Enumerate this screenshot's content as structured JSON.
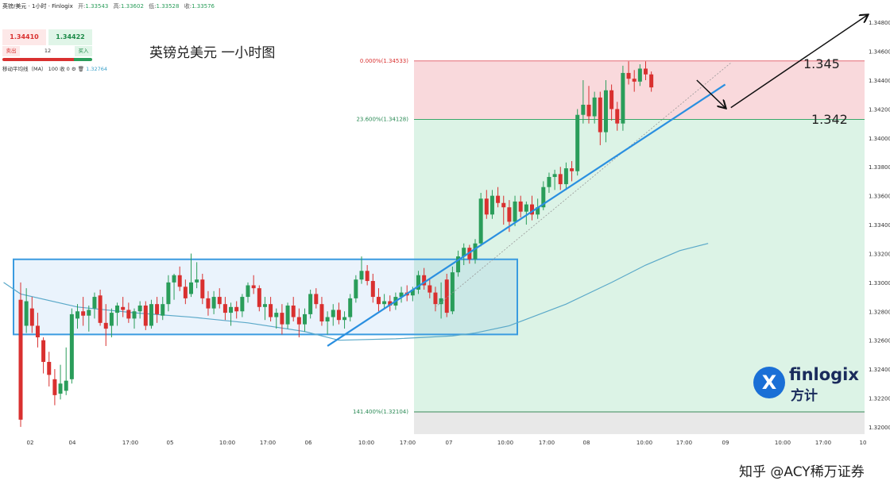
{
  "header": {
    "symbol": "英镑/美元 · 1小时 · Finlogix",
    "open_label": "开:",
    "open": "1.33543",
    "high_label": "高:",
    "high": "1.33602",
    "low_label": "低:",
    "low": "1.33528",
    "close_label": "收:",
    "close": "1.33576"
  },
  "trade": {
    "sell_price": "1.34410",
    "buy_price": "1.34422",
    "sell_label": "卖出",
    "buy_label": "买入",
    "quantity": "12",
    "sell_share": 0.8
  },
  "indicator": {
    "label": "移动平均线（MA） 100 收 0",
    "value": "1.32764"
  },
  "annotations": {
    "title": "英镑兑美元 一小时图",
    "level_high": "1.345",
    "level_mid": "1.342"
  },
  "brand": {
    "logo_en": "finlogix",
    "logo_cn": "方计",
    "logo_icon": "finlogix-x-logo"
  },
  "watermark": "知乎 @ACY稀万证券",
  "colors": {
    "up": "#2a9d5a",
    "down": "#d9302f",
    "fib_red": "#f9d9dc",
    "fib_green": "#dcf3e6",
    "range_box": "#3a9be0",
    "trendline": "#2a8fe0",
    "ma": "#5ba9c9"
  },
  "chart_data": {
    "type": "candlestick",
    "symbol": "GBP/USD",
    "timeframe": "1H",
    "y_ticks": [
      "1.34800",
      "1.34600",
      "1.34400",
      "1.34200",
      "1.34000",
      "1.33800",
      "1.33600",
      "1.33400",
      "1.33200",
      "1.33000",
      "1.32800",
      "1.32600",
      "1.32400",
      "1.32200",
      "1.32000"
    ],
    "x_ticks": [
      "02",
      "04",
      "17:00",
      "05",
      "10:00",
      "17:00",
      "06",
      "10:00",
      "17:00",
      "07",
      "10:00",
      "17:00",
      "08",
      "10:00",
      "17:00",
      "09",
      "10:00",
      "17:00",
      "10"
    ],
    "ylim": [
      1.3195,
      1.349
    ],
    "fib_levels": [
      {
        "label": "0.000%(1.34533)",
        "price": 1.34533
      },
      {
        "label": "23.600%(1.34128)",
        "price": 1.34128
      },
      {
        "label": "141.400%(1.32104)",
        "price": 1.32104
      }
    ],
    "range_box": {
      "start_bar": 0,
      "end_bar": 96,
      "top": 1.3316,
      "bottom": 1.3264
    },
    "trendline": {
      "from": {
        "bar": 54,
        "price": 1.3256
      },
      "to": {
        "bar": 124,
        "price": 1.3437
      }
    },
    "projection_arrow": {
      "from": {
        "bar": 125,
        "price": 1.3421
      },
      "to": {
        "bar": 149,
        "price": 1.3485
      }
    },
    "pullback_arrow": {
      "from": {
        "bar": 119,
        "price": 1.344
      },
      "to": {
        "bar": 124,
        "price": 1.3421
      }
    },
    "ma100": [
      [
        -3,
        1.33
      ],
      [
        0,
        1.3292
      ],
      [
        10,
        1.3283
      ],
      [
        20,
        1.3279
      ],
      [
        30,
        1.3276
      ],
      [
        40,
        1.3272
      ],
      [
        50,
        1.3266
      ],
      [
        56,
        1.326
      ],
      [
        66,
        1.3261
      ],
      [
        76,
        1.3263
      ],
      [
        80,
        1.3265
      ],
      [
        86,
        1.327
      ],
      [
        96,
        1.3285
      ],
      [
        104,
        1.33
      ],
      [
        110,
        1.3312
      ],
      [
        116,
        1.3322
      ],
      [
        121,
        1.3327
      ]
    ],
    "candles": [
      [
        1.3288,
        1.33,
        1.32,
        1.3205
      ],
      [
        1.327,
        1.3296,
        1.3265,
        1.3287
      ],
      [
        1.3282,
        1.329,
        1.3265,
        1.327
      ],
      [
        1.327,
        1.3279,
        1.3255,
        1.3262
      ],
      [
        1.326,
        1.3262,
        1.3237,
        1.3245
      ],
      [
        1.3245,
        1.3252,
        1.3228,
        1.3236
      ],
      [
        1.3233,
        1.324,
        1.3215,
        1.3222
      ],
      [
        1.3223,
        1.3243,
        1.3219,
        1.323
      ],
      [
        1.3225,
        1.3255,
        1.3222,
        1.3232
      ],
      [
        1.3233,
        1.3282,
        1.323,
        1.3278
      ],
      [
        1.3275,
        1.3285,
        1.3268,
        1.328
      ],
      [
        1.328,
        1.329,
        1.327,
        1.3277
      ],
      [
        1.3277,
        1.3284,
        1.3266,
        1.3281
      ],
      [
        1.3282,
        1.3293,
        1.3275,
        1.329
      ],
      [
        1.3291,
        1.3295,
        1.327,
        1.3272
      ],
      [
        1.3272,
        1.3285,
        1.3256,
        1.3268
      ],
      [
        1.327,
        1.3282,
        1.3262,
        1.3279
      ],
      [
        1.3279,
        1.3286,
        1.327,
        1.3284
      ],
      [
        1.3283,
        1.329,
        1.3276,
        1.3281
      ],
      [
        1.3281,
        1.3286,
        1.3272,
        1.3275
      ],
      [
        1.3275,
        1.3282,
        1.3268,
        1.328
      ],
      [
        1.328,
        1.3287,
        1.3275,
        1.3284
      ],
      [
        1.3284,
        1.3287,
        1.3267,
        1.327
      ],
      [
        1.327,
        1.3288,
        1.3268,
        1.3285
      ],
      [
        1.3285,
        1.329,
        1.3272,
        1.3278
      ],
      [
        1.3277,
        1.329,
        1.3274,
        1.3285
      ],
      [
        1.3285,
        1.3305,
        1.328,
        1.33
      ],
      [
        1.33,
        1.3306,
        1.3288,
        1.3305
      ],
      [
        1.3305,
        1.3311,
        1.3294,
        1.3297
      ],
      [
        1.3297,
        1.3302,
        1.3285,
        1.3289
      ],
      [
        1.3292,
        1.332,
        1.329,
        1.33
      ],
      [
        1.33,
        1.3314,
        1.3296,
        1.3302
      ],
      [
        1.3302,
        1.3306,
        1.3285,
        1.3289
      ],
      [
        1.3289,
        1.3294,
        1.3277,
        1.3282
      ],
      [
        1.3282,
        1.3294,
        1.3278,
        1.329
      ],
      [
        1.329,
        1.3296,
        1.3282,
        1.3285
      ],
      [
        1.3285,
        1.329,
        1.3274,
        1.3279
      ],
      [
        1.3279,
        1.3286,
        1.327,
        1.3283
      ],
      [
        1.3283,
        1.3287,
        1.3275,
        1.328
      ],
      [
        1.328,
        1.3292,
        1.3276,
        1.329
      ],
      [
        1.329,
        1.33,
        1.3286,
        1.3298
      ],
      [
        1.3298,
        1.3305,
        1.3292,
        1.3296
      ],
      [
        1.3296,
        1.3298,
        1.328,
        1.3283
      ],
      [
        1.3283,
        1.329,
        1.3274,
        1.3285
      ],
      [
        1.3285,
        1.329,
        1.3273,
        1.3276
      ],
      [
        1.3276,
        1.3282,
        1.3268,
        1.3279
      ],
      [
        1.3279,
        1.3285,
        1.3264,
        1.3271
      ],
      [
        1.3271,
        1.3286,
        1.3268,
        1.3284
      ],
      [
        1.3284,
        1.329,
        1.3273,
        1.3276
      ],
      [
        1.3276,
        1.3282,
        1.3262,
        1.3271
      ],
      [
        1.3271,
        1.3282,
        1.3266,
        1.3278
      ],
      [
        1.3278,
        1.3295,
        1.3275,
        1.3292
      ],
      [
        1.3292,
        1.3296,
        1.3282,
        1.3285
      ],
      [
        1.3285,
        1.329,
        1.327,
        1.3273
      ],
      [
        1.3273,
        1.328,
        1.3264,
        1.3276
      ],
      [
        1.3276,
        1.3285,
        1.327,
        1.3281
      ],
      [
        1.3281,
        1.3286,
        1.3271,
        1.3274
      ],
      [
        1.3274,
        1.328,
        1.3268,
        1.3276
      ],
      [
        1.3276,
        1.3292,
        1.3273,
        1.3289
      ],
      [
        1.3289,
        1.3305,
        1.3286,
        1.3302
      ],
      [
        1.3302,
        1.3318,
        1.3299,
        1.3308
      ],
      [
        1.3308,
        1.3312,
        1.3298,
        1.3301
      ],
      [
        1.3301,
        1.3306,
        1.3286,
        1.329
      ],
      [
        1.329,
        1.3296,
        1.328,
        1.3285
      ],
      [
        1.3285,
        1.3292,
        1.3282,
        1.3287
      ],
      [
        1.3287,
        1.3291,
        1.328,
        1.3284
      ],
      [
        1.3284,
        1.3293,
        1.3281,
        1.329
      ],
      [
        1.329,
        1.3297,
        1.3286,
        1.3293
      ],
      [
        1.3293,
        1.3298,
        1.3287,
        1.3291
      ],
      [
        1.3291,
        1.3297,
        1.3287,
        1.3295
      ],
      [
        1.3295,
        1.3308,
        1.3292,
        1.3305
      ],
      [
        1.3305,
        1.331,
        1.3295,
        1.3298
      ],
      [
        1.3298,
        1.3302,
        1.3289,
        1.3293
      ],
      [
        1.3293,
        1.3297,
        1.328,
        1.3285
      ],
      [
        1.3285,
        1.33,
        1.3275,
        1.3289
      ],
      [
        1.3302,
        1.3306,
        1.3276,
        1.3279
      ],
      [
        1.328,
        1.3311,
        1.3278,
        1.3307
      ],
      [
        1.3307,
        1.3322,
        1.3304,
        1.3318
      ],
      [
        1.3318,
        1.3327,
        1.3312,
        1.3324
      ],
      [
        1.3324,
        1.3326,
        1.3313,
        1.3316
      ],
      [
        1.3316,
        1.333,
        1.3313,
        1.3327
      ],
      [
        1.3327,
        1.3362,
        1.3325,
        1.3358
      ],
      [
        1.3358,
        1.3364,
        1.3344,
        1.3347
      ],
      [
        1.3347,
        1.3364,
        1.3344,
        1.336
      ],
      [
        1.336,
        1.3366,
        1.3352,
        1.3355
      ],
      [
        1.3355,
        1.336,
        1.334,
        1.3352
      ],
      [
        1.3352,
        1.3357,
        1.3335,
        1.3342
      ],
      [
        1.3342,
        1.336,
        1.3339,
        1.3356
      ],
      [
        1.3356,
        1.336,
        1.3345,
        1.3349
      ],
      [
        1.3349,
        1.3356,
        1.334,
        1.3354
      ],
      [
        1.3354,
        1.336,
        1.3343,
        1.3347
      ],
      [
        1.3347,
        1.3358,
        1.3344,
        1.3352
      ],
      [
        1.3352,
        1.337,
        1.335,
        1.3366
      ],
      [
        1.3366,
        1.3376,
        1.3362,
        1.3373
      ],
      [
        1.3373,
        1.3378,
        1.3364,
        1.3375
      ],
      [
        1.3375,
        1.338,
        1.3364,
        1.3368
      ],
      [
        1.3368,
        1.3383,
        1.3364,
        1.3379
      ],
      [
        1.3379,
        1.3384,
        1.337,
        1.3377
      ],
      [
        1.3377,
        1.342,
        1.3374,
        1.3416
      ],
      [
        1.3416,
        1.344,
        1.341,
        1.3423
      ],
      [
        1.3423,
        1.3436,
        1.341,
        1.3415
      ],
      [
        1.3415,
        1.3432,
        1.341,
        1.3428
      ],
      [
        1.3428,
        1.3432,
        1.3395,
        1.3404
      ],
      [
        1.3404,
        1.344,
        1.3397,
        1.3433
      ],
      [
        1.3433,
        1.3437,
        1.3412,
        1.342
      ],
      [
        1.342,
        1.3425,
        1.3405,
        1.341
      ],
      [
        1.341,
        1.345,
        1.3405,
        1.3445
      ],
      [
        1.3445,
        1.3453,
        1.3437,
        1.3441
      ],
      [
        1.3441,
        1.3447,
        1.3432,
        1.3439
      ],
      [
        1.3439,
        1.3451,
        1.3436,
        1.3448
      ],
      [
        1.3448,
        1.3453,
        1.344,
        1.3444
      ],
      [
        1.3444,
        1.3446,
        1.3432,
        1.3435
      ]
    ]
  }
}
